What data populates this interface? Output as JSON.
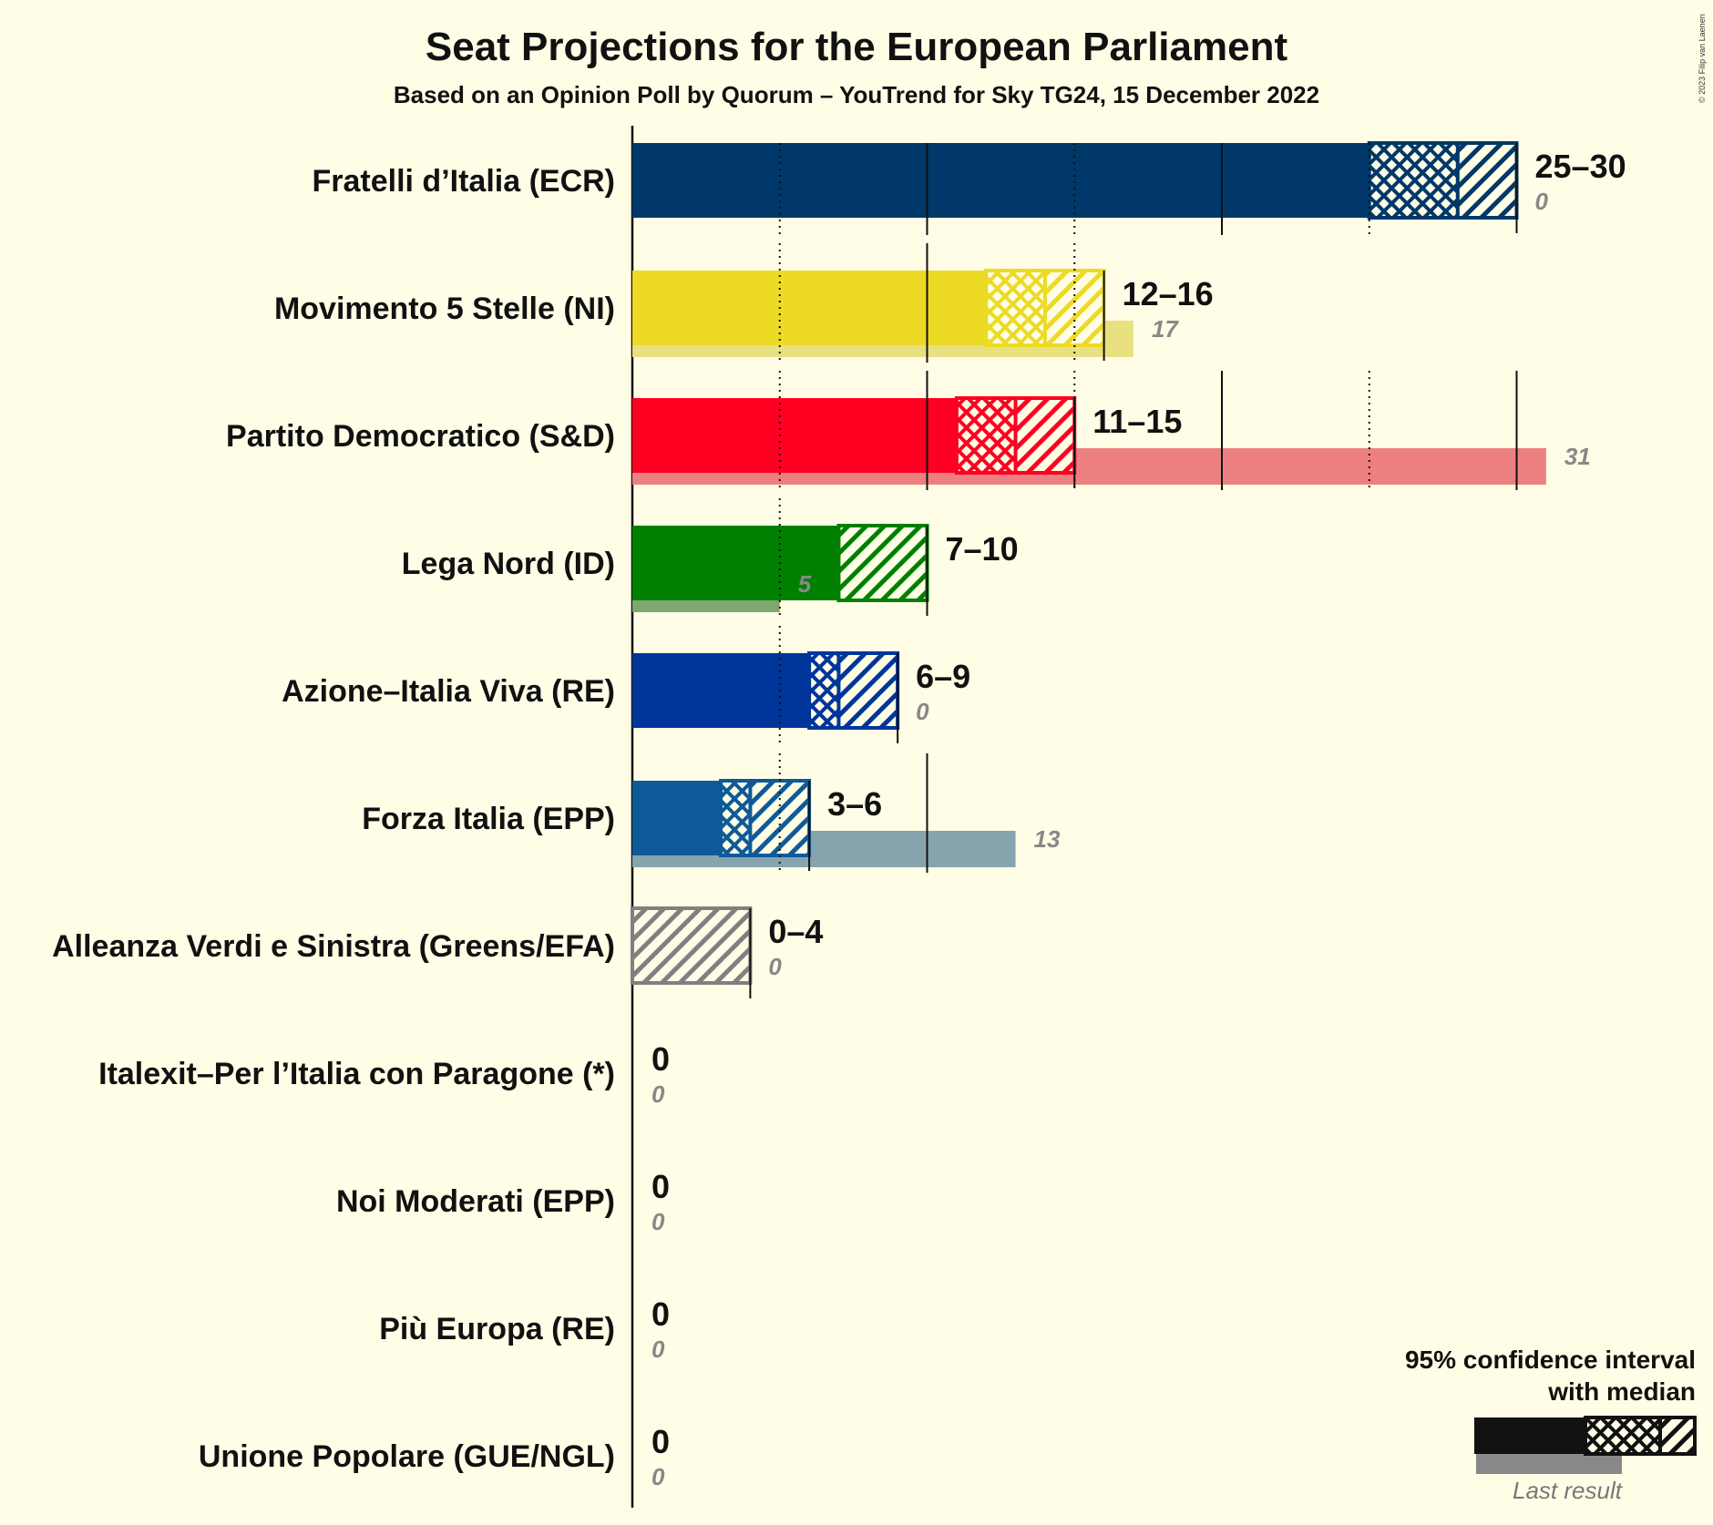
{
  "copyright": "© 2023 Filip van Laenen",
  "legend": {
    "line1": "95% confidence interval",
    "line2": "with median",
    "last_result": "Last result",
    "color": "#111111"
  },
  "chart_data": {
    "type": "bar",
    "title": "Seat Projections for the European Parliament",
    "subtitle": "Based on an Opinion Poll by Quorum – YouTrend for Sky TG24, 15 December 2022",
    "x_range": [
      0,
      31
    ],
    "gridlines": [
      5,
      10,
      15,
      20,
      25,
      30
    ],
    "parties": [
      {
        "name": "Fratelli d’Italia (ECR)",
        "low": 25,
        "median": 28,
        "high": 30,
        "range_label": "25–30",
        "last": 0,
        "last_label": "0",
        "color": "#003869",
        "last_color": "#003869"
      },
      {
        "name": "Movimento 5 Stelle (NI)",
        "low": 12,
        "median": 14,
        "high": 16,
        "range_label": "12–16",
        "last": 17,
        "last_label": "17",
        "color": "#ECDA25",
        "last_color": "#E9E181"
      },
      {
        "name": "Partito Democratico (S&D)",
        "low": 11,
        "median": 13,
        "high": 15,
        "range_label": "11–15",
        "last": 31,
        "last_label": "31",
        "color": "#FF0022",
        "last_color": "#EC8080"
      },
      {
        "name": "Lega Nord (ID)",
        "low": 7,
        "median": 7,
        "high": 10,
        "range_label": "7–10",
        "last": 5,
        "last_label": "5",
        "color": "#008000",
        "last_color": "#7FA870"
      },
      {
        "name": "Azione–Italia Viva (RE)",
        "low": 6,
        "median": 7,
        "high": 9,
        "range_label": "6–9",
        "last": 0,
        "last_label": "0",
        "color": "#00359A",
        "last_color": "#00359A"
      },
      {
        "name": "Forza Italia (EPP)",
        "low": 3,
        "median": 4,
        "high": 6,
        "range_label": "3–6",
        "last": 13,
        "last_label": "13",
        "color": "#0E5A99",
        "last_color": "#86A4AE"
      },
      {
        "name": "Alleanza Verdi e Sinistra (Greens/EFA)",
        "low": 0,
        "median": 0,
        "high": 4,
        "range_label": "0–4",
        "last": 0,
        "last_label": "0",
        "color": "#808080",
        "last_color": "#808080"
      },
      {
        "name": "Italexit–Per l’Italia con Paragone (*)",
        "low": 0,
        "median": 0,
        "high": 0,
        "range_label": "0",
        "last": 0,
        "last_label": "0",
        "color": "#808080",
        "last_color": "#808080"
      },
      {
        "name": "Noi Moderati (EPP)",
        "low": 0,
        "median": 0,
        "high": 0,
        "range_label": "0",
        "last": 0,
        "last_label": "0",
        "color": "#808080",
        "last_color": "#808080"
      },
      {
        "name": "Più Europa (RE)",
        "low": 0,
        "median": 0,
        "high": 0,
        "range_label": "0",
        "last": 0,
        "last_label": "0",
        "color": "#808080",
        "last_color": "#808080"
      },
      {
        "name": "Unione Popolare (GUE/NGL)",
        "low": 0,
        "median": 0,
        "high": 0,
        "range_label": "0",
        "last": 0,
        "last_label": "0",
        "color": "#808080",
        "last_color": "#808080"
      }
    ]
  }
}
